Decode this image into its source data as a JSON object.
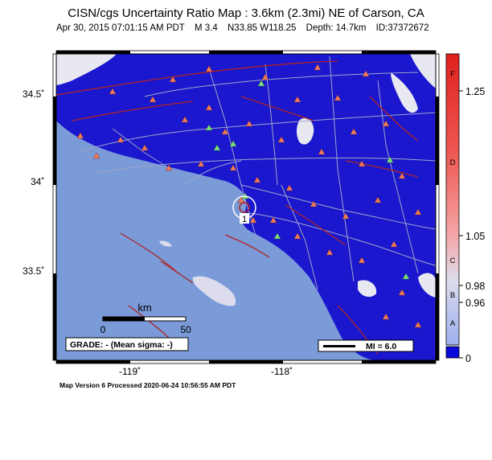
{
  "title": "CISN/cgs Uncertainty Ratio Map : 3.6km (2.3mi) NE of Carson, CA",
  "subtitle": {
    "datetime": "Apr 30, 2015 07:01:15 AM PDT",
    "magnitude": "M 3.4",
    "location": "N33.85 W118.25",
    "depth": "Depth: 14.7km",
    "id": "ID:37372672"
  },
  "axes": {
    "lat_ticks": [
      "34.5˚",
      "34˚",
      "33.5˚"
    ],
    "lon_ticks": [
      "-119˚",
      "-118˚"
    ]
  },
  "scale_bar": {
    "unit": "km",
    "min": "0",
    "max": "50"
  },
  "grade": "GRADE: - (Mean sigma: -)",
  "mi_legend": "MI = 6.0",
  "colorbar": {
    "grade_letters": [
      "F",
      "D",
      "C",
      "B",
      "A"
    ],
    "values": [
      "1.25",
      "1.05",
      "0.98",
      "0.96",
      "0"
    ],
    "colors": {
      "top": "#e0211d",
      "mid": "#f4a6a6",
      "low": "#cfd3ee",
      "bottom": "#0a0adc"
    }
  },
  "epicenter_label": "1",
  "footer": "Map Version 6 Processed 2020-06-24 10:56:55 AM PDT",
  "colors": {
    "ocean": "#7a9ad8",
    "uncert_low": "#1a17cf",
    "roads": "#a0a4c8",
    "faults": "#b22222",
    "stations_seismic": "#f07a5a",
    "stations_strong": "#7ee07e"
  }
}
